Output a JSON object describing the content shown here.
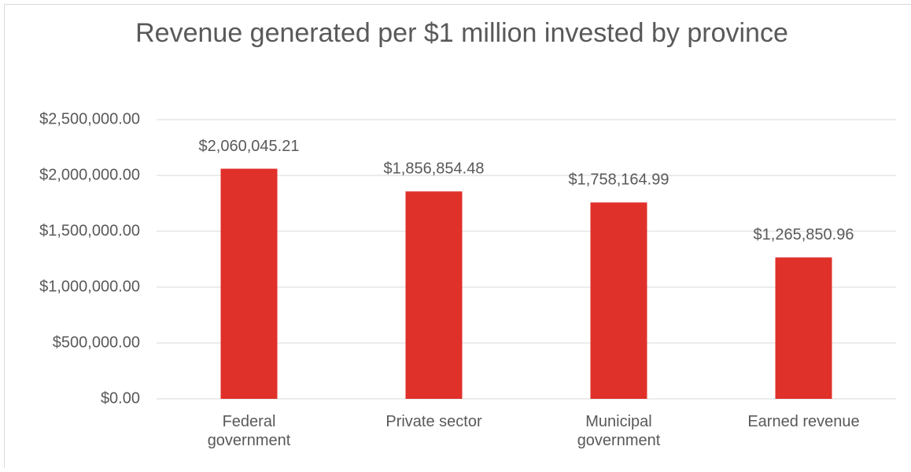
{
  "chart_data": {
    "type": "bar",
    "title": "Revenue generated per $1 million invested by province",
    "categories": [
      "Federal government",
      "Private sector",
      "Municipal government",
      "Earned revenue"
    ],
    "values": [
      2060045.21,
      1856854.48,
      1758164.99,
      1265850.96
    ],
    "value_labels": [
      "$2,060,045.21",
      "$1,856,854.48",
      "$1,758,164.99",
      "$1,265,850.96"
    ],
    "color": "#e0302a",
    "ylim": [
      0,
      2500000
    ],
    "yticks": [
      {
        "value": 0,
        "label": "$0.00"
      },
      {
        "value": 500000,
        "label": "$500,000.00"
      },
      {
        "value": 1000000,
        "label": "$1,000,000.00"
      },
      {
        "value": 1500000,
        "label": "$1,500,000.00"
      },
      {
        "value": 2000000,
        "label": "$2,000,000.00"
      },
      {
        "value": 2500000,
        "label": "$2,500,000.00"
      }
    ],
    "grid": true
  }
}
